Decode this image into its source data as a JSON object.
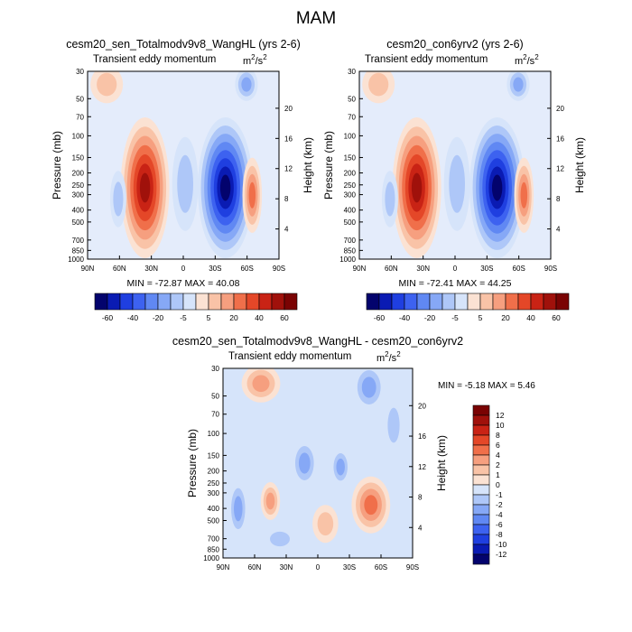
{
  "title": "MAM",
  "colors": {
    "blues": [
      "#03036d",
      "#0a1bb3",
      "#1f3fe0",
      "#3d62f0",
      "#6088f3",
      "#86a8f6",
      "#aec7f8",
      "#d6e4fa"
    ],
    "reds": [
      "#fbe2d3",
      "#f9c3a7",
      "#f69f7f",
      "#f06f4a",
      "#e44728",
      "#c92315",
      "#a0110b",
      "#7a0303"
    ]
  },
  "chart_data": [
    {
      "type": "contour",
      "title": "cesm20_sen_Totalmodv9v8_WangHL (yrs 2-6)",
      "subtitle_left": "Transient eddy momentum",
      "units_base": "m",
      "units_exp": "2",
      "units_tail": "/s",
      "units_exp2": "2",
      "ylabel": "Pressure (mb)",
      "y2label": "Height (km)",
      "xticks": [
        "90N",
        "60N",
        "30N",
        "0",
        "30S",
        "60S",
        "90S"
      ],
      "yticks": [
        "30",
        "50",
        "70",
        "100",
        "150",
        "200",
        "250",
        "300",
        "400",
        "500",
        "700",
        "850",
        "1000"
      ],
      "y2ticks": [
        "20",
        "16",
        "12",
        "8",
        "4"
      ],
      "stats": "MIN = -72.87   MAX =  40.08",
      "min": -72.87,
      "max": 40.08,
      "colorbar_labels": [
        "-60",
        "-40",
        "-20",
        "-5",
        "5",
        "20",
        "40",
        "60"
      ]
    },
    {
      "type": "contour",
      "title": "cesm20_con6yrv2 (yrs 2-6)",
      "subtitle_left": "Transient eddy momentum",
      "units_base": "m",
      "units_exp": "2",
      "units_tail": "/s",
      "units_exp2": "2",
      "ylabel": "Pressure (mb)",
      "y2label": "Height (km)",
      "xticks": [
        "90N",
        "60N",
        "30N",
        "0",
        "30S",
        "60S",
        "90S"
      ],
      "yticks": [
        "30",
        "50",
        "70",
        "100",
        "150",
        "200",
        "250",
        "300",
        "400",
        "500",
        "700",
        "850",
        "1000"
      ],
      "y2ticks": [
        "20",
        "16",
        "12",
        "8",
        "4"
      ],
      "stats": "MIN = -72.41   MAX =  44.25",
      "min": -72.41,
      "max": 44.25,
      "colorbar_labels": [
        "-60",
        "-40",
        "-20",
        "-5",
        "5",
        "20",
        "40",
        "60"
      ]
    },
    {
      "type": "contour",
      "title": "cesm20_sen_Totalmodv9v8_WangHL - cesm20_con6yrv2",
      "subtitle_left": "Transient eddy momentum",
      "units_base": "m",
      "units_exp": "2",
      "units_tail": "/s",
      "units_exp2": "2",
      "ylabel": "Pressure (mb)",
      "y2label": "Height (km)",
      "xticks": [
        "90N",
        "60N",
        "30N",
        "0",
        "30S",
        "60S",
        "90S"
      ],
      "yticks": [
        "30",
        "50",
        "70",
        "100",
        "150",
        "200",
        "250",
        "300",
        "400",
        "500",
        "700",
        "850",
        "1000"
      ],
      "y2ticks": [
        "20",
        "16",
        "12",
        "8",
        "4"
      ],
      "stats": "MIN =  -5.18   MAX =    5.46",
      "min": -5.18,
      "max": 5.46,
      "colorbar_labels": [
        "12",
        "10",
        "8",
        "6",
        "4",
        "2",
        "1",
        "0",
        "-1",
        "-2",
        "-4",
        "-6",
        "-8",
        "-10",
        "-12"
      ]
    }
  ]
}
